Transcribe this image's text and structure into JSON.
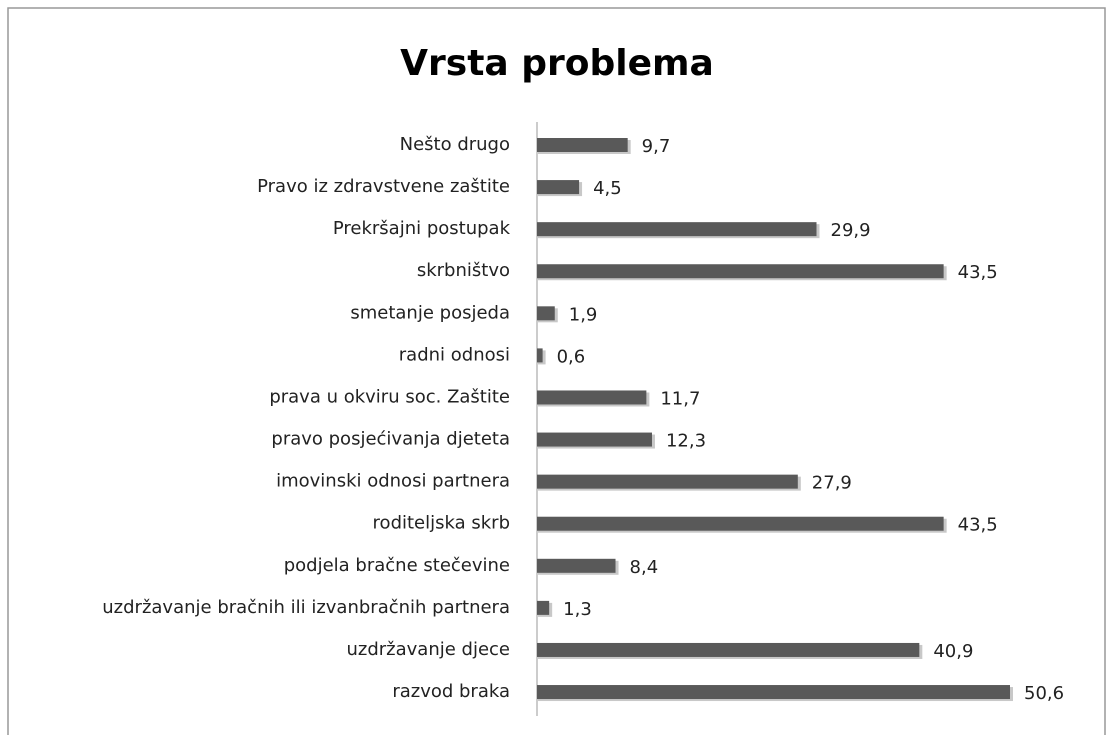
{
  "chart_data": {
    "type": "bar",
    "orientation": "horizontal",
    "title": "Vrsta problema",
    "categories": [
      "Nešto drugo",
      "Pravo iz zdravstvene zaštite",
      "Prekršajni postupak",
      "skrbništvo",
      "smetanje posjeda",
      "radni odnosi",
      "prava u okviru soc. Zaštite",
      "pravo posjećivanja djeteta",
      "imovinski odnosi partnera",
      "roditeljska skrb",
      "podjela bračne stečevine",
      "uzdržavanje bračnih ili izvanbračnih partnera",
      "uzdržavanje djece",
      "razvod braka"
    ],
    "values": [
      9.7,
      4.5,
      29.9,
      43.5,
      1.9,
      0.6,
      11.7,
      12.3,
      27.9,
      43.5,
      8.4,
      1.3,
      40.9,
      50.6
    ],
    "value_labels": [
      "9,7",
      "4,5",
      "29,9",
      "43,5",
      "1,9",
      "0,6",
      "11,7",
      "12,3",
      "27,9",
      "43,5",
      "8,4",
      "1,3",
      "40,9",
      "50,6"
    ],
    "color": "#595959"
  }
}
